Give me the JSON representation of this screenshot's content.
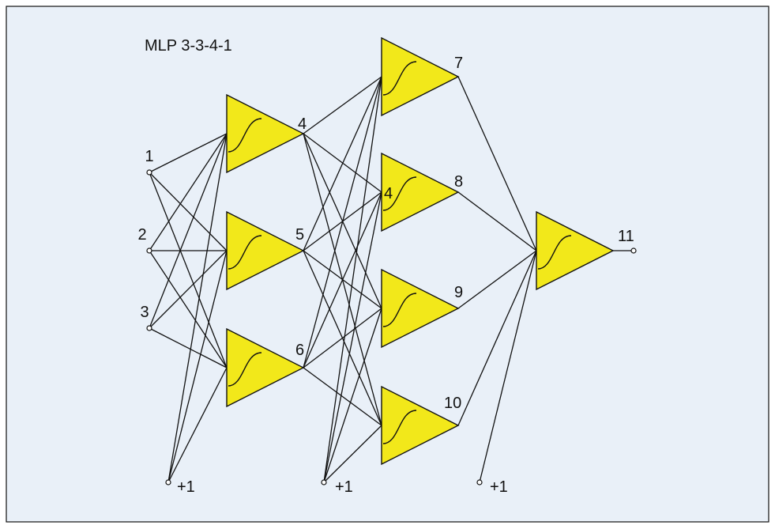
{
  "title": "MLP 3-3-4-1",
  "colors": {
    "background": "#e9f0f8",
    "neuron_fill": "#f2e81a",
    "stroke": "#111111"
  },
  "inputs": [
    {
      "id": "in-1",
      "label": "1"
    },
    {
      "id": "in-2",
      "label": "2"
    },
    {
      "id": "in-3",
      "label": "3"
    }
  ],
  "hidden1": [
    {
      "id": "n4",
      "label": "4"
    },
    {
      "id": "n5",
      "label": "5"
    },
    {
      "id": "n6",
      "label": "6"
    }
  ],
  "hidden2": [
    {
      "id": "n7",
      "label": "7"
    },
    {
      "id": "n8",
      "label": "8",
      "inner_label": "4"
    },
    {
      "id": "n9",
      "label": "9"
    },
    {
      "id": "n10",
      "label": "10"
    }
  ],
  "output": [
    {
      "id": "n11",
      "label": "11"
    }
  ],
  "biases": [
    {
      "id": "bias-1",
      "label": "+1"
    },
    {
      "id": "bias-2",
      "label": "+1"
    },
    {
      "id": "bias-3",
      "label": "+1"
    }
  ]
}
